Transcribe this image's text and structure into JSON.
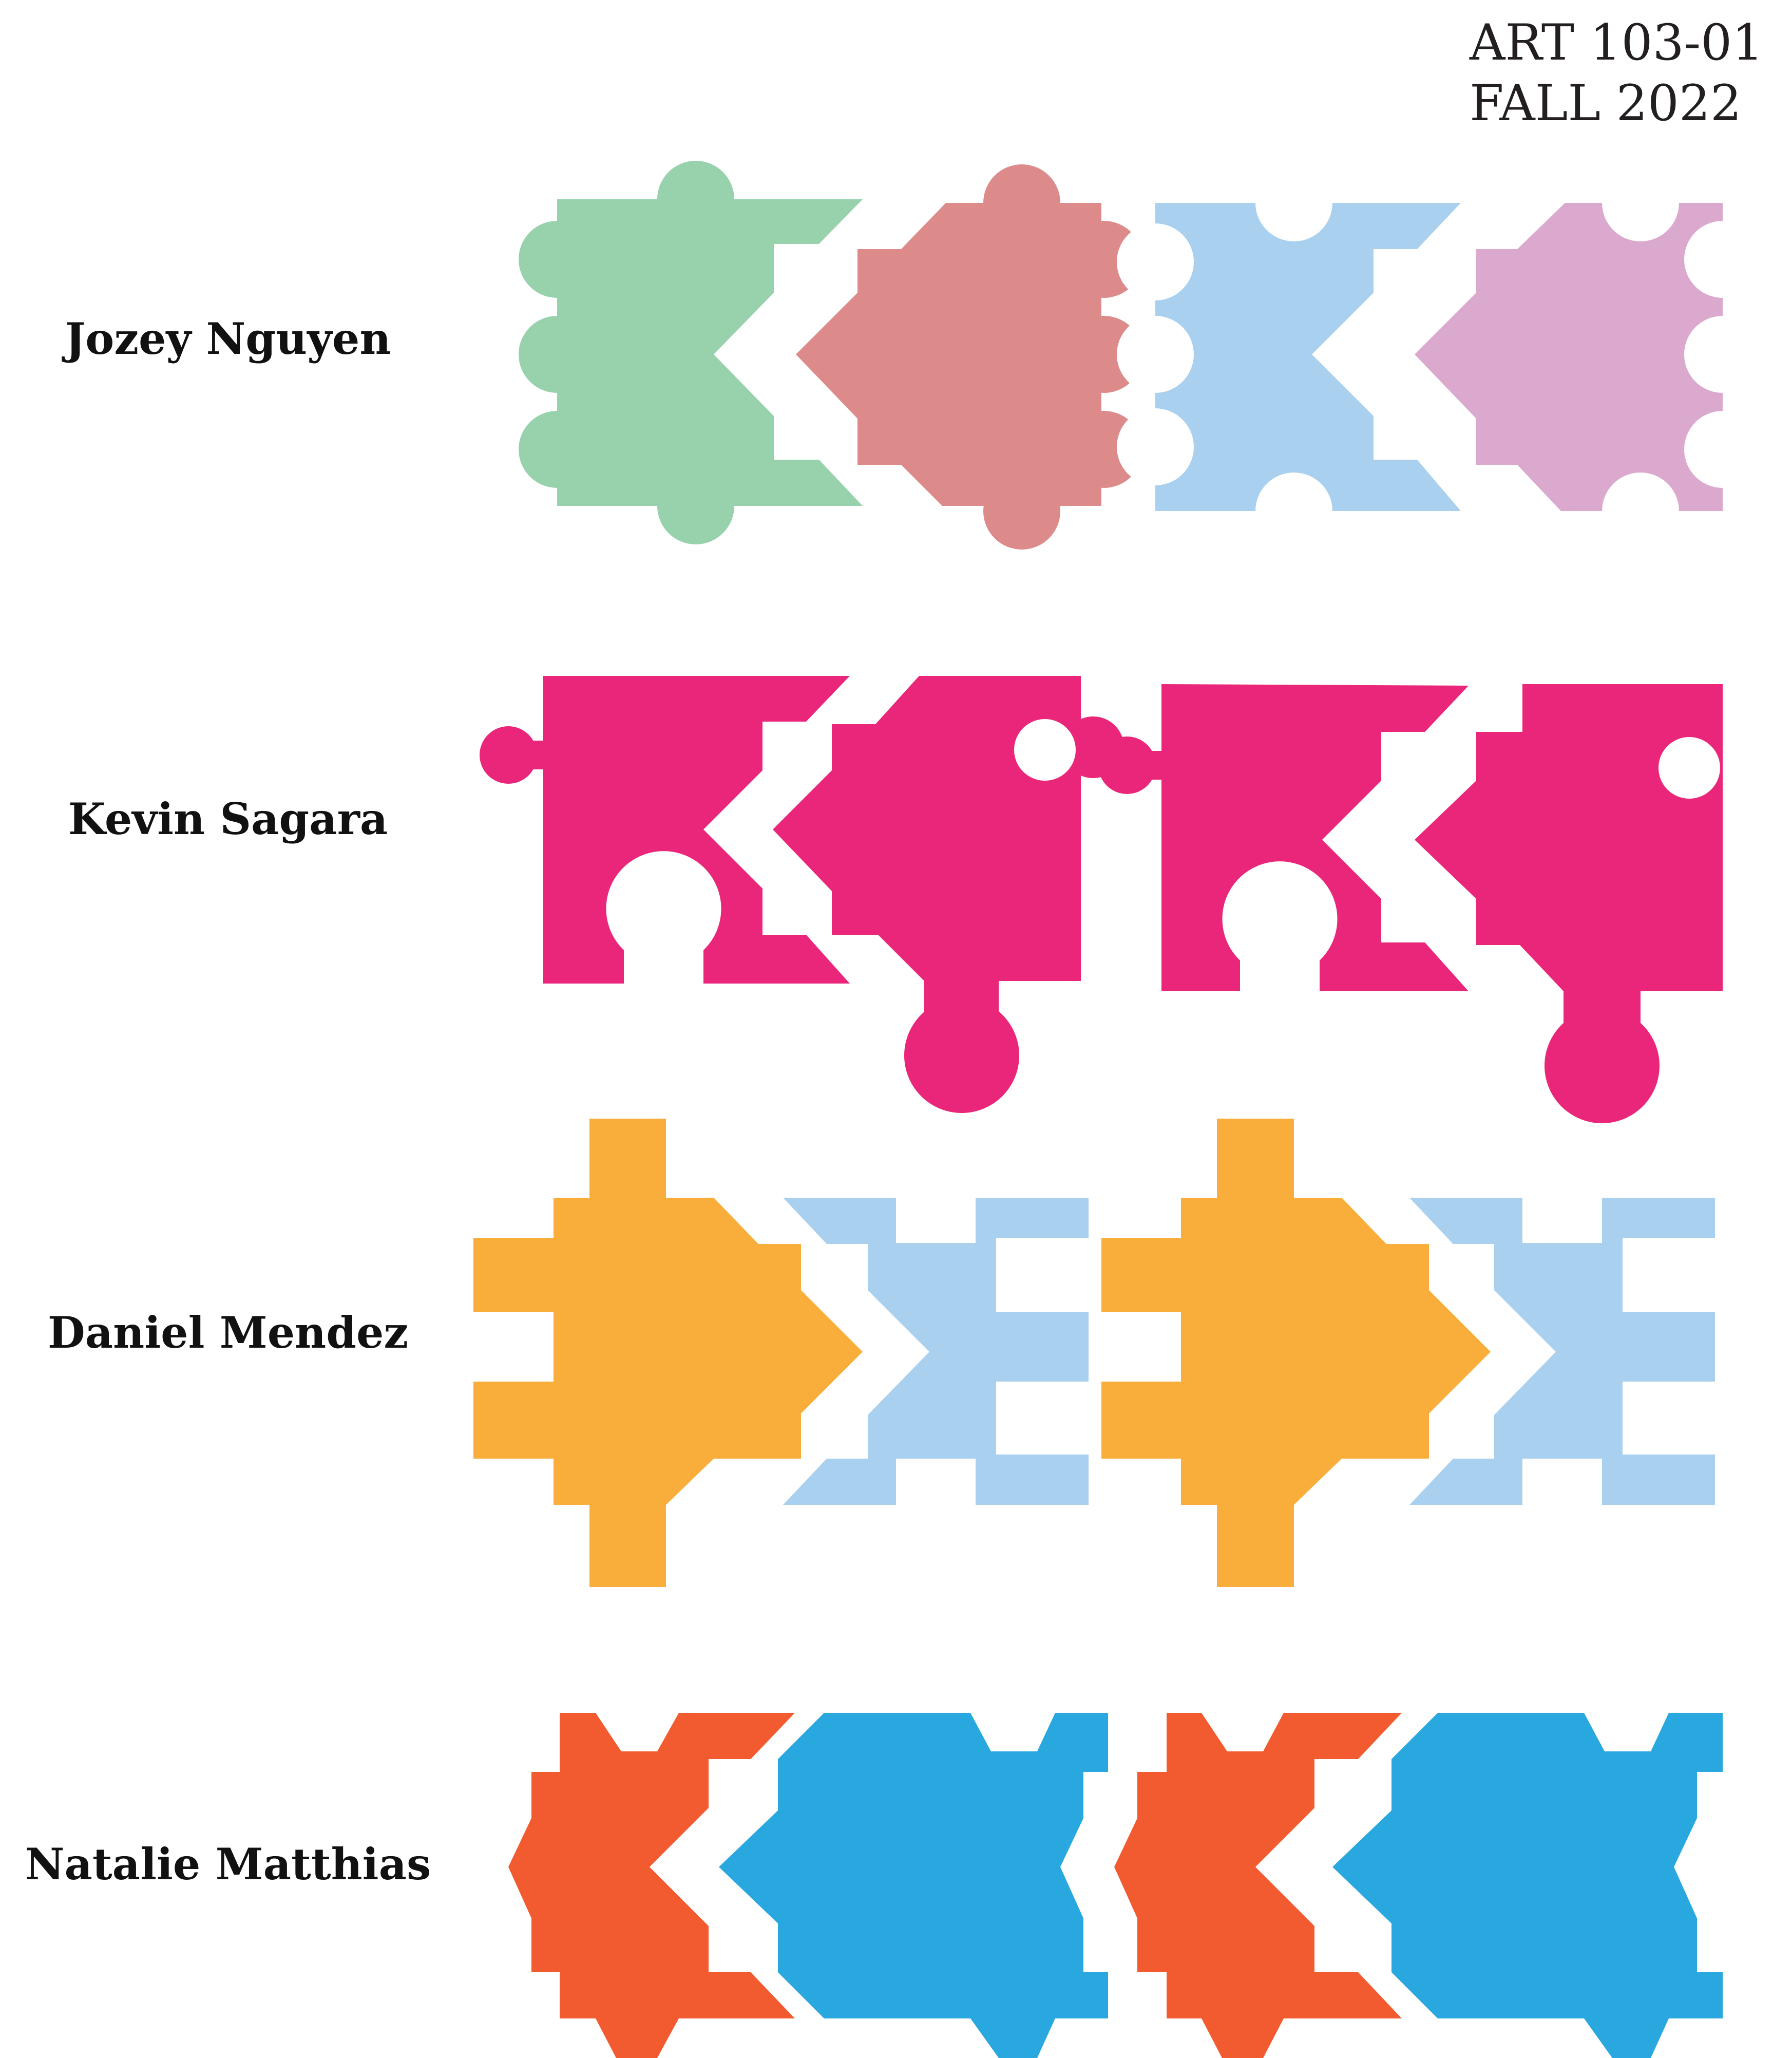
{
  "course": {
    "code": "ART 103-01",
    "term": "FALL 2022"
  },
  "students": [
    {
      "name": "Jozey Nguyen",
      "colors": [
        "#97d2ad",
        "#dc8a8a",
        "#a9d0ef",
        "#dca9ce"
      ]
    },
    {
      "name": "Kevin Sagara",
      "colors": [
        "#e9267a"
      ]
    },
    {
      "name": "Daniel Mendez",
      "colors": [
        "#f9ae3b",
        "#a9d0ef"
      ]
    },
    {
      "name": "Natalie Matthias",
      "colors": [
        "#f15b2f",
        "#29a7df"
      ]
    }
  ]
}
